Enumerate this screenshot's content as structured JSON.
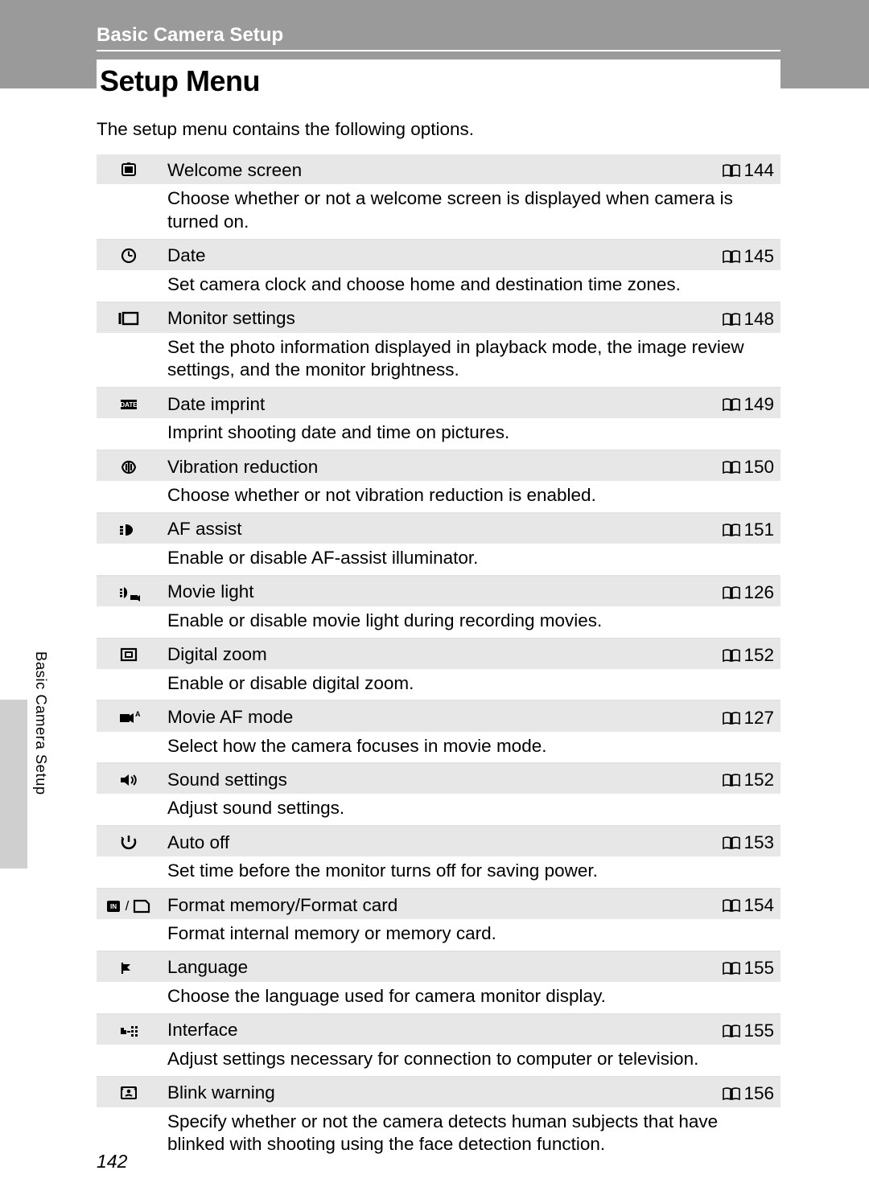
{
  "chapter": "Basic Camera Setup",
  "section_title": "Setup Menu",
  "intro": "The setup menu contains the following options.",
  "side_label": "Basic Camera Setup",
  "page_number": "142",
  "colors": {
    "band": "#9a9a9a",
    "row_shade": "#e7e7e7",
    "tab": "#cfcfcf"
  },
  "items": [
    {
      "icon": "welcome",
      "title": "Welcome screen",
      "page": "144",
      "desc": "Choose whether or not a welcome screen is displayed when camera is turned on."
    },
    {
      "icon": "clock",
      "title": "Date",
      "page": "145",
      "desc": "Set camera clock and choose home and destination time zones."
    },
    {
      "icon": "monitor",
      "title": "Monitor settings",
      "page": "148",
      "desc": "Set the photo information displayed in playback mode, the image review settings, and the monitor brightness."
    },
    {
      "icon": "datebadge",
      "title": "Date imprint",
      "page": "149",
      "desc": "Imprint shooting date and time on pictures."
    },
    {
      "icon": "vr",
      "title": "Vibration reduction",
      "page": "150",
      "desc": "Choose whether or not vibration reduction is enabled."
    },
    {
      "icon": "afassist",
      "title": "AF assist",
      "page": "151",
      "desc": "Enable or disable AF-assist illuminator."
    },
    {
      "icon": "movielight",
      "title": "Movie light",
      "page": "126",
      "desc": "Enable or disable movie light during recording movies."
    },
    {
      "icon": "dzoom",
      "title": "Digital zoom",
      "page": "152",
      "desc": "Enable or disable digital zoom."
    },
    {
      "icon": "movieaf",
      "title": "Movie AF mode",
      "page": "127",
      "desc": "Select how the camera focuses in movie mode."
    },
    {
      "icon": "sound",
      "title": "Sound settings",
      "page": "152",
      "desc": "Adjust sound settings."
    },
    {
      "icon": "autooff",
      "title": "Auto off",
      "page": "153",
      "desc": "Set time before the monitor turns off for saving power."
    },
    {
      "icon": "format",
      "title": "Format memory/Format card",
      "page": "154",
      "desc": "Format internal memory or memory card."
    },
    {
      "icon": "language",
      "title": "Language",
      "page": "155",
      "desc": "Choose the language used for camera monitor display."
    },
    {
      "icon": "interface",
      "title": "Interface",
      "page": "155",
      "desc": "Adjust settings necessary for connection to computer or television."
    },
    {
      "icon": "blink",
      "title": "Blink warning",
      "page": "156",
      "desc": "Specify whether or not the camera detects human subjects that have blinked with shooting using the face detection function."
    }
  ]
}
